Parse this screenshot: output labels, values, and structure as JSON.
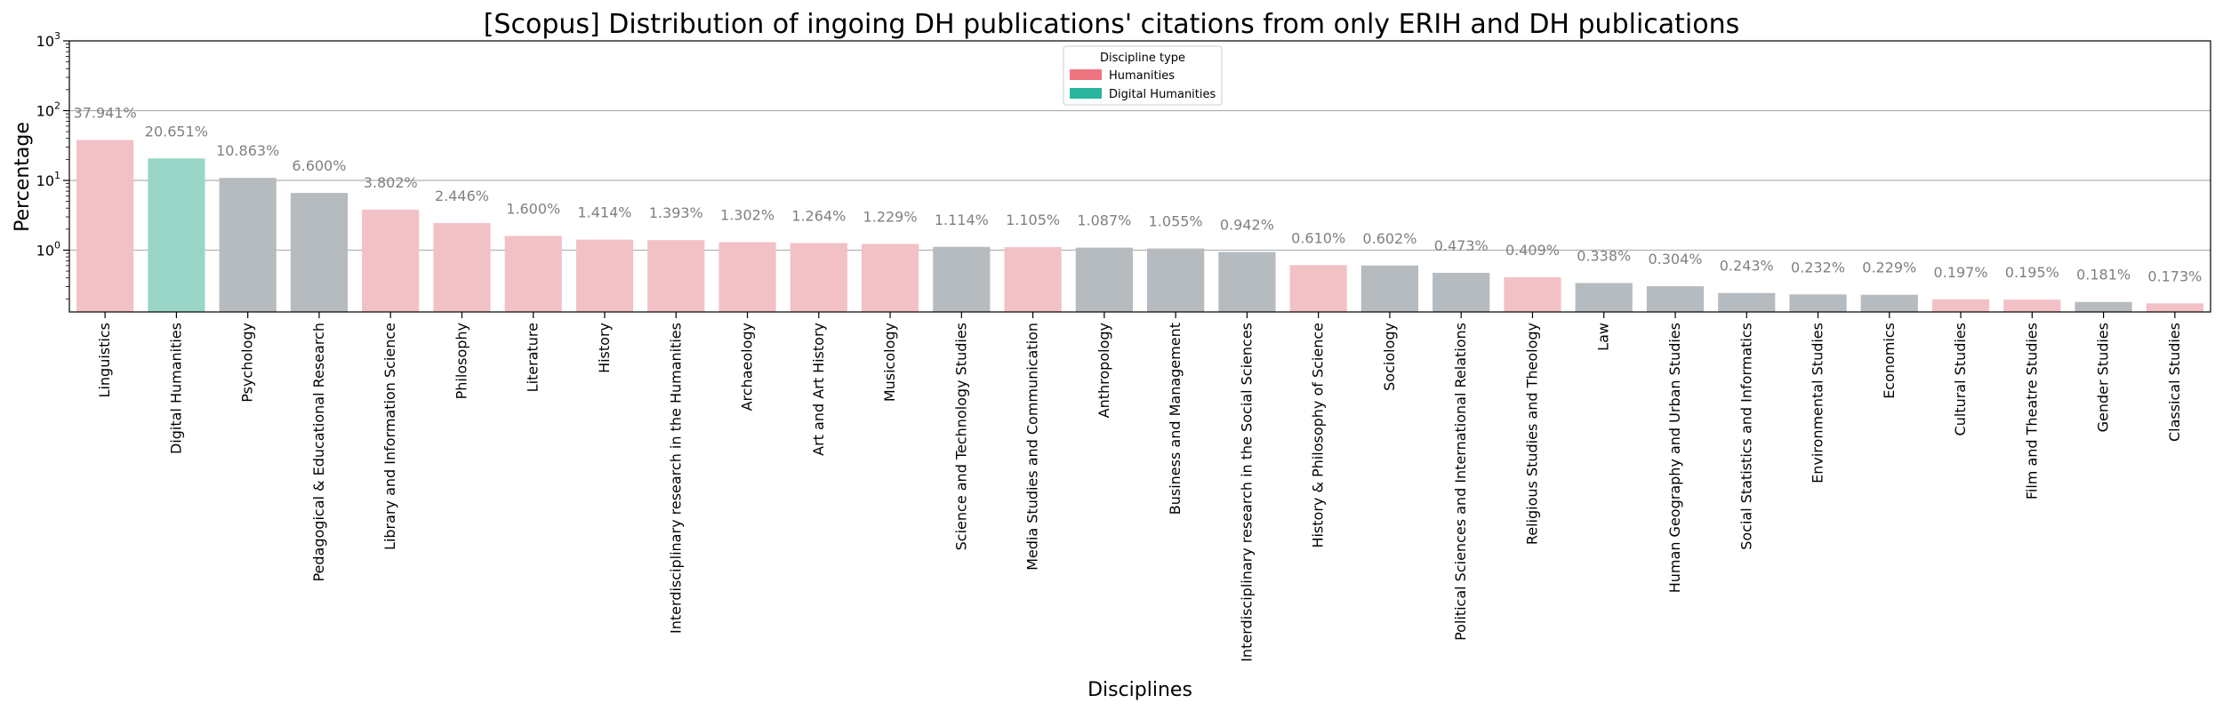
{
  "chart_data": {
    "type": "bar",
    "title": "[Scopus] Distribution of ingoing DH publications' citations from only ERIH and DH publications",
    "xlabel": "Disciplines",
    "ylabel": "Percentage",
    "yscale": "log",
    "ylim": [
      0.13,
      1000
    ],
    "yticks": [
      {
        "value": 1,
        "base": "10",
        "exp": "0"
      },
      {
        "value": 10,
        "base": "10",
        "exp": "1"
      },
      {
        "value": 100,
        "base": "10",
        "exp": "2"
      },
      {
        "value": 1000,
        "base": "10",
        "exp": "3"
      }
    ],
    "grid": "horizontal major",
    "legend": {
      "title": "Discipline type",
      "placement": "top-center",
      "entries": [
        {
          "label": "Humanities",
          "color": "#f07480"
        },
        {
          "label": "Digital Humanities",
          "color": "#2ab59f"
        }
      ]
    },
    "colors": {
      "humanities": "#f2c1c6",
      "digital_humanities": "#9ad6c8",
      "other": "#b6bbbf",
      "data_label": "#808080",
      "grid": "#b0b0b0"
    },
    "bars": [
      {
        "category": "Linguistics",
        "value": 37.941,
        "label": "37.941%",
        "group": "humanities"
      },
      {
        "category": "Digital Humanities",
        "value": 20.651,
        "label": "20.651%",
        "group": "digital_humanities"
      },
      {
        "category": "Psychology",
        "value": 10.863,
        "label": "10.863%",
        "group": "other"
      },
      {
        "category": "Pedagogical & Educational Research",
        "value": 6.6,
        "label": "6.600%",
        "group": "other"
      },
      {
        "category": "Library and Information Science",
        "value": 3.802,
        "label": "3.802%",
        "group": "humanities"
      },
      {
        "category": "Philosophy",
        "value": 2.446,
        "label": "2.446%",
        "group": "humanities"
      },
      {
        "category": "Literature",
        "value": 1.6,
        "label": "1.600%",
        "group": "humanities"
      },
      {
        "category": "History",
        "value": 1.414,
        "label": "1.414%",
        "group": "humanities"
      },
      {
        "category": "Interdisciplinary research in the Humanities",
        "value": 1.393,
        "label": "1.393%",
        "group": "humanities"
      },
      {
        "category": "Archaeology",
        "value": 1.302,
        "label": "1.302%",
        "group": "humanities"
      },
      {
        "category": "Art and Art History",
        "value": 1.264,
        "label": "1.264%",
        "group": "humanities"
      },
      {
        "category": "Musicology",
        "value": 1.229,
        "label": "1.229%",
        "group": "humanities"
      },
      {
        "category": "Science and Technology Studies",
        "value": 1.114,
        "label": "1.114%",
        "group": "other"
      },
      {
        "category": "Media Studies and Communication",
        "value": 1.105,
        "label": "1.105%",
        "group": "humanities"
      },
      {
        "category": "Anthropology",
        "value": 1.087,
        "label": "1.087%",
        "group": "other"
      },
      {
        "category": "Business and Management",
        "value": 1.055,
        "label": "1.055%",
        "group": "other"
      },
      {
        "category": "Interdisciplinary research in the Social Sciences",
        "value": 0.942,
        "label": "0.942%",
        "group": "other"
      },
      {
        "category": "History & Philosophy of Science",
        "value": 0.61,
        "label": "0.610%",
        "group": "humanities"
      },
      {
        "category": "Sociology",
        "value": 0.602,
        "label": "0.602%",
        "group": "other"
      },
      {
        "category": "Political Sciences and International Relations",
        "value": 0.473,
        "label": "0.473%",
        "group": "other"
      },
      {
        "category": "Religious Studies and Theology",
        "value": 0.409,
        "label": "0.409%",
        "group": "humanities"
      },
      {
        "category": "Law",
        "value": 0.338,
        "label": "0.338%",
        "group": "other"
      },
      {
        "category": "Human Geography and Urban Studies",
        "value": 0.304,
        "label": "0.304%",
        "group": "other"
      },
      {
        "category": "Social Statistics and Informatics",
        "value": 0.243,
        "label": "0.243%",
        "group": "other"
      },
      {
        "category": "Environmental Studies",
        "value": 0.232,
        "label": "0.232%",
        "group": "other"
      },
      {
        "category": "Economics",
        "value": 0.229,
        "label": "0.229%",
        "group": "other"
      },
      {
        "category": "Cultural Studies",
        "value": 0.197,
        "label": "0.197%",
        "group": "humanities"
      },
      {
        "category": "Film and Theatre Studies",
        "value": 0.195,
        "label": "0.195%",
        "group": "humanities"
      },
      {
        "category": "Gender Studies",
        "value": 0.181,
        "label": "0.181%",
        "group": "other"
      },
      {
        "category": "Classical Studies",
        "value": 0.173,
        "label": "0.173%",
        "group": "humanities"
      }
    ]
  }
}
